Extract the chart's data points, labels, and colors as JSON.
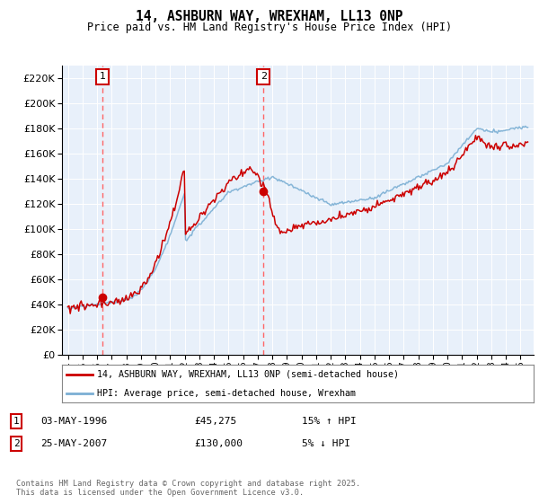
{
  "title": "14, ASHBURN WAY, WREXHAM, LL13 0NP",
  "subtitle": "Price paid vs. HM Land Registry's House Price Index (HPI)",
  "legend_line1": "14, ASHBURN WAY, WREXHAM, LL13 0NP (semi-detached house)",
  "legend_line2": "HPI: Average price, semi-detached house, Wrexham",
  "annotation1_label": "1",
  "annotation1_date": "03-MAY-1996",
  "annotation1_price": "£45,275",
  "annotation1_hpi": "15% ↑ HPI",
  "annotation2_label": "2",
  "annotation2_date": "25-MAY-2007",
  "annotation2_price": "£130,000",
  "annotation2_hpi": "5% ↓ HPI",
  "footer": "Contains HM Land Registry data © Crown copyright and database right 2025.\nThis data is licensed under the Open Government Licence v3.0.",
  "hpi_color": "#7BAFD4",
  "price_color": "#CC0000",
  "vline_color": "#FF6666",
  "plot_bg": "#E8F0FA",
  "ylim": [
    0,
    230000
  ],
  "yticks": [
    0,
    20000,
    40000,
    60000,
    80000,
    100000,
    120000,
    140000,
    160000,
    180000,
    200000,
    220000
  ],
  "purchase1_year": 1996.38,
  "purchase1_value": 45275,
  "purchase2_year": 2007.4,
  "purchase2_value": 130000
}
